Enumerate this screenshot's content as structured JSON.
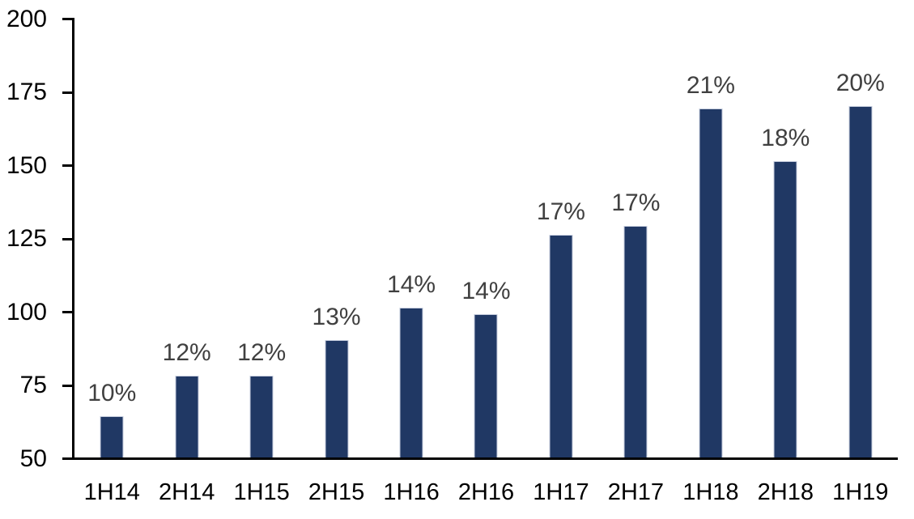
{
  "chart_data": {
    "type": "bar",
    "title": "",
    "xlabel": "",
    "ylabel": "",
    "categories": [
      "1H14",
      "2H14",
      "1H15",
      "2H15",
      "1H16",
      "2H16",
      "1H17",
      "2H17",
      "1H18",
      "2H18",
      "1H19"
    ],
    "values": [
      64,
      78,
      78,
      90,
      101,
      99,
      126,
      129,
      169,
      151,
      170
    ],
    "bar_labels": [
      "10%",
      "12%",
      "12%",
      "13%",
      "14%",
      "14%",
      "17%",
      "17%",
      "21%",
      "18%",
      "20%"
    ],
    "ylim": [
      50,
      200
    ],
    "yticks": [
      200,
      175,
      150,
      125,
      100,
      75,
      50
    ],
    "grid": false,
    "legend": false,
    "colors": {
      "bar_fill": "#203864",
      "bar_border": "#c6cdde",
      "bar_label_text": "#404040",
      "axis": "#000000",
      "axis_text": "#000000",
      "background": "#ffffff"
    }
  }
}
